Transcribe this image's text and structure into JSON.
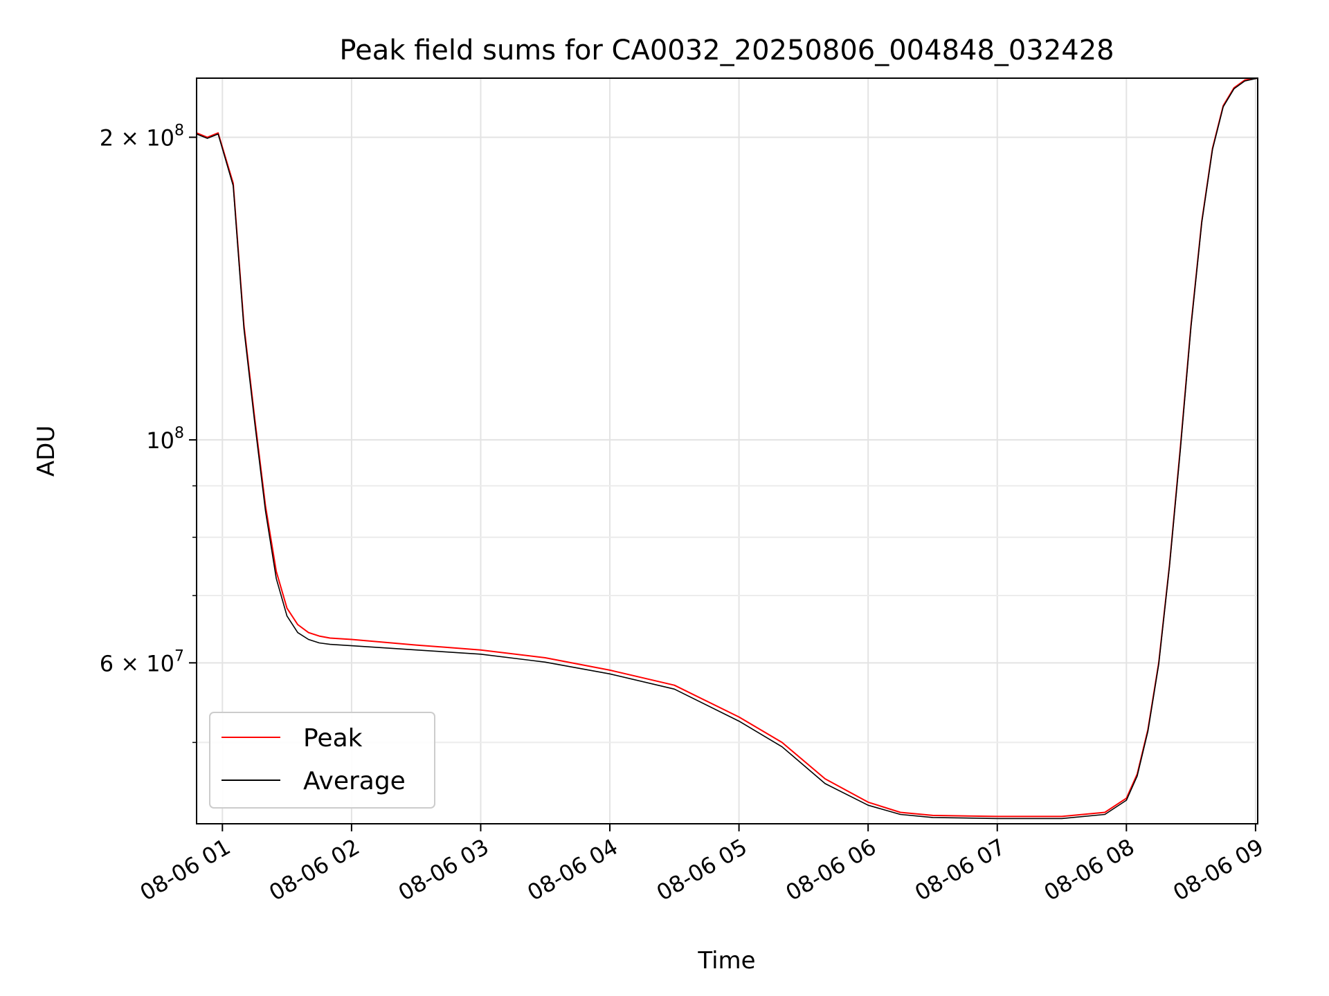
{
  "chart_data": {
    "type": "line",
    "title": "Peak field sums for CA0032_20250806_004848_032428",
    "xlabel": "Time",
    "ylabel": "ADU",
    "y_scale": "log",
    "x_range": [
      "2025-08-06 00:48",
      "2025-08-06 09:01"
    ],
    "ylim": [
      41500000,
      229000000
    ],
    "x_ticks": [
      {
        "value": "2025-08-06 01:00",
        "label": "08-06 01"
      },
      {
        "value": "2025-08-06 02:00",
        "label": "08-06 02"
      },
      {
        "value": "2025-08-06 03:00",
        "label": "08-06 03"
      },
      {
        "value": "2025-08-06 04:00",
        "label": "08-06 04"
      },
      {
        "value": "2025-08-06 05:00",
        "label": "08-06 05"
      },
      {
        "value": "2025-08-06 06:00",
        "label": "08-06 06"
      },
      {
        "value": "2025-08-06 07:00",
        "label": "08-06 07"
      },
      {
        "value": "2025-08-06 08:00",
        "label": "08-06 08"
      },
      {
        "value": "2025-08-06 09:00",
        "label": "08-06 09"
      }
    ],
    "y_major_ticks": [
      {
        "value": 200000000,
        "base": "2 × 10",
        "exp": "8"
      },
      {
        "value": 100000000,
        "base": "10",
        "exp": "8"
      },
      {
        "value": 60000000,
        "base": "6 × 10",
        "exp": "7"
      }
    ],
    "y_minor_ticks": [
      50000000,
      70000000,
      80000000,
      90000000
    ],
    "grid": true,
    "legend_position": "lower-left",
    "series": [
      {
        "name": "Peak",
        "color": "#ff0000",
        "x": [
          "2025-08-06 00:48",
          "2025-08-06 00:53",
          "2025-08-06 00:58",
          "2025-08-06 01:05",
          "2025-08-06 01:10",
          "2025-08-06 01:15",
          "2025-08-06 01:20",
          "2025-08-06 01:25",
          "2025-08-06 01:30",
          "2025-08-06 01:35",
          "2025-08-06 01:40",
          "2025-08-06 01:45",
          "2025-08-06 01:50",
          "2025-08-06 02:00",
          "2025-08-06 02:30",
          "2025-08-06 03:00",
          "2025-08-06 03:30",
          "2025-08-06 04:00",
          "2025-08-06 04:30",
          "2025-08-06 05:00",
          "2025-08-06 05:20",
          "2025-08-06 05:40",
          "2025-08-06 06:00",
          "2025-08-06 06:15",
          "2025-08-06 06:30",
          "2025-08-06 07:00",
          "2025-08-06 07:30",
          "2025-08-06 07:50",
          "2025-08-06 08:00",
          "2025-08-06 08:05",
          "2025-08-06 08:10",
          "2025-08-06 08:15",
          "2025-08-06 08:20",
          "2025-08-06 08:25",
          "2025-08-06 08:30",
          "2025-08-06 08:35",
          "2025-08-06 08:40",
          "2025-08-06 08:45",
          "2025-08-06 08:50",
          "2025-08-06 08:55",
          "2025-08-06 09:01"
        ],
        "values": [
          202000000,
          200000000,
          202000000,
          180000000,
          130000000,
          105000000,
          86000000,
          74000000,
          68000000,
          65500000,
          64300000,
          63800000,
          63500000,
          63300000,
          62500000,
          61800000,
          60700000,
          59000000,
          57000000,
          53000000,
          50000000,
          46000000,
          43600000,
          42600000,
          42300000,
          42200000,
          42200000,
          42600000,
          44000000,
          46500000,
          51500000,
          60000000,
          75000000,
          98000000,
          130000000,
          165000000,
          195000000,
          215000000,
          224000000,
          228000000,
          229000000
        ]
      },
      {
        "name": "Average",
        "color": "#000000",
        "x": [
          "2025-08-06 00:48",
          "2025-08-06 00:53",
          "2025-08-06 00:58",
          "2025-08-06 01:05",
          "2025-08-06 01:10",
          "2025-08-06 01:15",
          "2025-08-06 01:20",
          "2025-08-06 01:25",
          "2025-08-06 01:30",
          "2025-08-06 01:35",
          "2025-08-06 01:40",
          "2025-08-06 01:45",
          "2025-08-06 01:50",
          "2025-08-06 02:00",
          "2025-08-06 02:30",
          "2025-08-06 03:00",
          "2025-08-06 03:30",
          "2025-08-06 04:00",
          "2025-08-06 04:30",
          "2025-08-06 05:00",
          "2025-08-06 05:20",
          "2025-08-06 05:40",
          "2025-08-06 06:00",
          "2025-08-06 06:15",
          "2025-08-06 06:30",
          "2025-08-06 07:00",
          "2025-08-06 07:30",
          "2025-08-06 07:50",
          "2025-08-06 08:00",
          "2025-08-06 08:05",
          "2025-08-06 08:10",
          "2025-08-06 08:15",
          "2025-08-06 08:20",
          "2025-08-06 08:25",
          "2025-08-06 08:30",
          "2025-08-06 08:35",
          "2025-08-06 08:40",
          "2025-08-06 08:45",
          "2025-08-06 08:50",
          "2025-08-06 08:55",
          "2025-08-06 09:01"
        ],
        "values": [
          201500000,
          199500000,
          201500000,
          179000000,
          129000000,
          104000000,
          85000000,
          72800000,
          66800000,
          64300000,
          63300000,
          62800000,
          62600000,
          62400000,
          61800000,
          61200000,
          60100000,
          58500000,
          56500000,
          52500000,
          49500000,
          45500000,
          43300000,
          42400000,
          42100000,
          42000000,
          42000000,
          42400000,
          43800000,
          46300000,
          51300000,
          59800000,
          74800000,
          97500000,
          129500000,
          164500000,
          194500000,
          214500000,
          223500000,
          227500000,
          229000000
        ]
      }
    ]
  }
}
